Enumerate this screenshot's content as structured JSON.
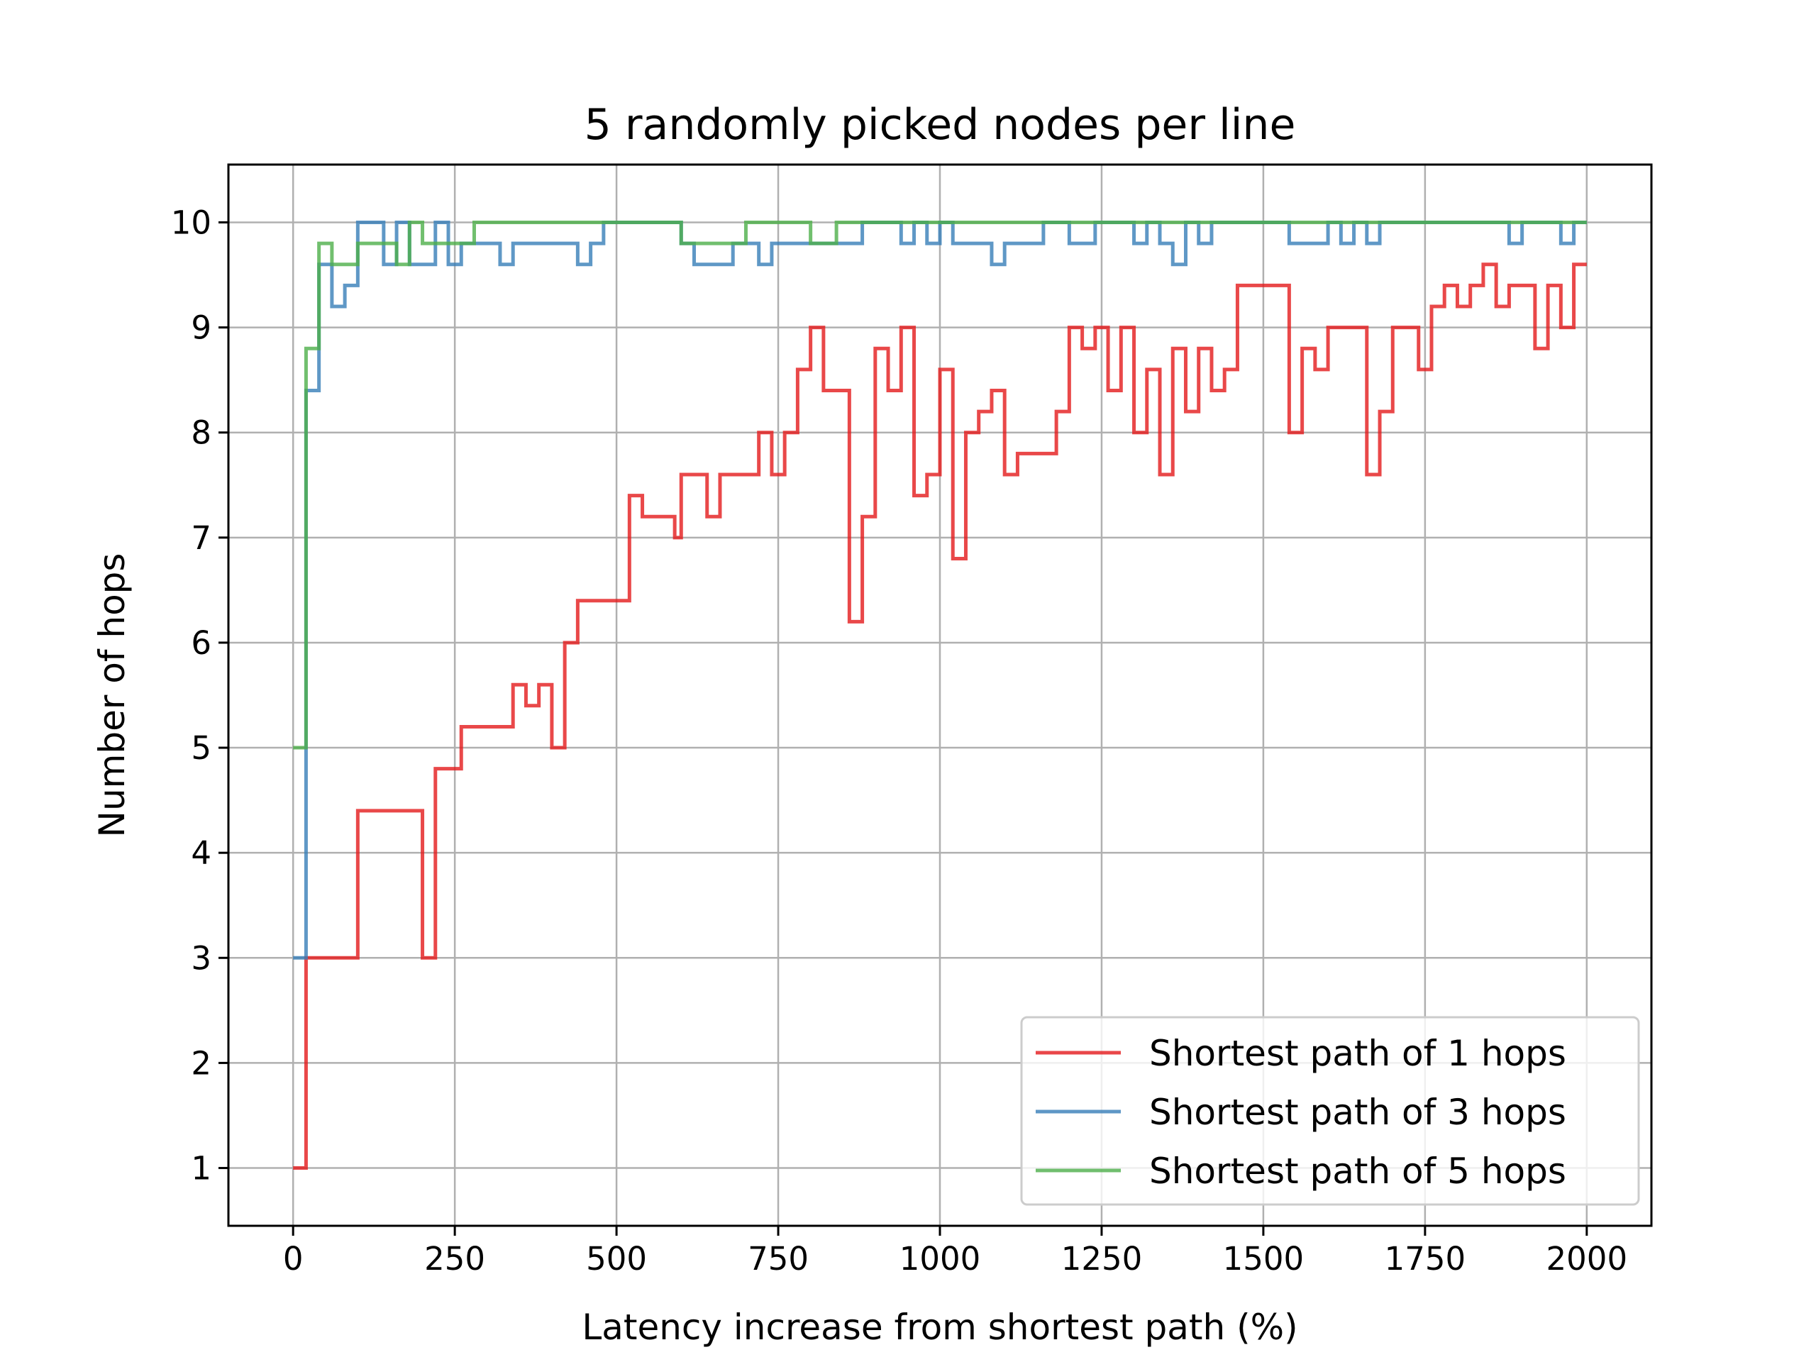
{
  "chart_data": {
    "type": "line",
    "step": "post",
    "title": "5 randomly picked nodes per line",
    "xlabel": "Latency increase from shortest path (%)",
    "ylabel": "Number of hops",
    "xlim": [
      -100,
      2100
    ],
    "ylim": [
      0.45,
      10.55
    ],
    "xticks": [
      0,
      250,
      500,
      750,
      1000,
      1250,
      1500,
      1750,
      2000
    ],
    "yticks": [
      1,
      2,
      3,
      4,
      5,
      6,
      7,
      8,
      9,
      10
    ],
    "grid": true,
    "legend_position": "lower-right",
    "series": [
      {
        "name": "Shortest path of 1 hops",
        "color": "#e41a1c",
        "x": [
          0,
          20,
          100,
          200,
          220,
          260,
          340,
          360,
          380,
          400,
          420,
          440,
          520,
          540,
          590,
          600,
          640,
          660,
          720,
          740,
          760,
          780,
          800,
          820,
          860,
          880,
          900,
          920,
          940,
          960,
          980,
          1000,
          1020,
          1040,
          1060,
          1080,
          1100,
          1120,
          1180,
          1200,
          1220,
          1240,
          1260,
          1280,
          1300,
          1320,
          1340,
          1360,
          1380,
          1400,
          1420,
          1440,
          1460,
          1480,
          1540,
          1560,
          1580,
          1600,
          1660,
          1680,
          1700,
          1720,
          1740,
          1760,
          1780,
          1800,
          1820,
          1840,
          1860,
          1880,
          1920,
          1940,
          1960,
          1980,
          2000
        ],
        "y": [
          1.0,
          3.0,
          4.4,
          3.0,
          4.8,
          5.2,
          5.6,
          5.4,
          5.6,
          5.0,
          6.0,
          6.4,
          7.4,
          7.2,
          7.0,
          7.6,
          7.2,
          7.6,
          8.0,
          7.6,
          8.0,
          8.6,
          9.0,
          8.4,
          6.2,
          7.2,
          8.8,
          8.4,
          9.0,
          7.4,
          7.6,
          8.6,
          6.8,
          8.0,
          8.2,
          8.4,
          7.6,
          7.8,
          8.2,
          9.0,
          8.8,
          9.0,
          8.4,
          9.0,
          8.0,
          8.6,
          7.6,
          8.8,
          8.2,
          8.8,
          8.4,
          8.6,
          9.4,
          9.4,
          8.0,
          8.8,
          8.6,
          9.0,
          7.6,
          8.2,
          9.0,
          9.0,
          8.6,
          9.2,
          9.4,
          9.2,
          9.4,
          9.6,
          9.2,
          9.4,
          8.8,
          9.4,
          9.0,
          9.6,
          9.6
        ]
      },
      {
        "name": "Shortest path of 3 hops",
        "color": "#377eb8",
        "x": [
          0,
          20,
          40,
          60,
          80,
          100,
          140,
          160,
          180,
          220,
          240,
          260,
          300,
          320,
          340,
          440,
          460,
          480,
          600,
          620,
          660,
          680,
          720,
          740,
          780,
          880,
          940,
          960,
          980,
          1000,
          1020,
          1060,
          1080,
          1100,
          1160,
          1200,
          1240,
          1300,
          1320,
          1340,
          1360,
          1380,
          1400,
          1420,
          1440,
          1460,
          1480,
          1540,
          1560,
          1600,
          1620,
          1640,
          1660,
          1680,
          1700,
          1720,
          1880,
          1900,
          1960,
          1980,
          2000
        ],
        "y": [
          3.0,
          8.4,
          9.6,
          9.2,
          9.4,
          10.0,
          9.6,
          10.0,
          9.6,
          10.0,
          9.6,
          9.8,
          9.8,
          9.6,
          9.8,
          9.6,
          9.8,
          10.0,
          9.8,
          9.6,
          9.6,
          9.8,
          9.6,
          9.8,
          9.8,
          10.0,
          9.8,
          10.0,
          9.8,
          10.0,
          9.8,
          9.8,
          9.6,
          9.8,
          10.0,
          9.8,
          10.0,
          9.8,
          10.0,
          9.8,
          9.6,
          10.0,
          9.8,
          10.0,
          10.0,
          10.0,
          10.0,
          9.8,
          9.8,
          10.0,
          9.8,
          10.0,
          9.8,
          10.0,
          10.0,
          10.0,
          9.8,
          10.0,
          9.8,
          10.0,
          10.0
        ]
      },
      {
        "name": "Shortest path of 5 hops",
        "color": "#4daf4a",
        "x": [
          0,
          20,
          40,
          60,
          100,
          160,
          180,
          200,
          280,
          600,
          680,
          700,
          800,
          840,
          2000
        ],
        "y": [
          5.0,
          8.8,
          9.8,
          9.6,
          9.8,
          9.6,
          10.0,
          9.8,
          10.0,
          9.8,
          9.8,
          10.0,
          9.8,
          10.0,
          10.0
        ]
      }
    ]
  }
}
